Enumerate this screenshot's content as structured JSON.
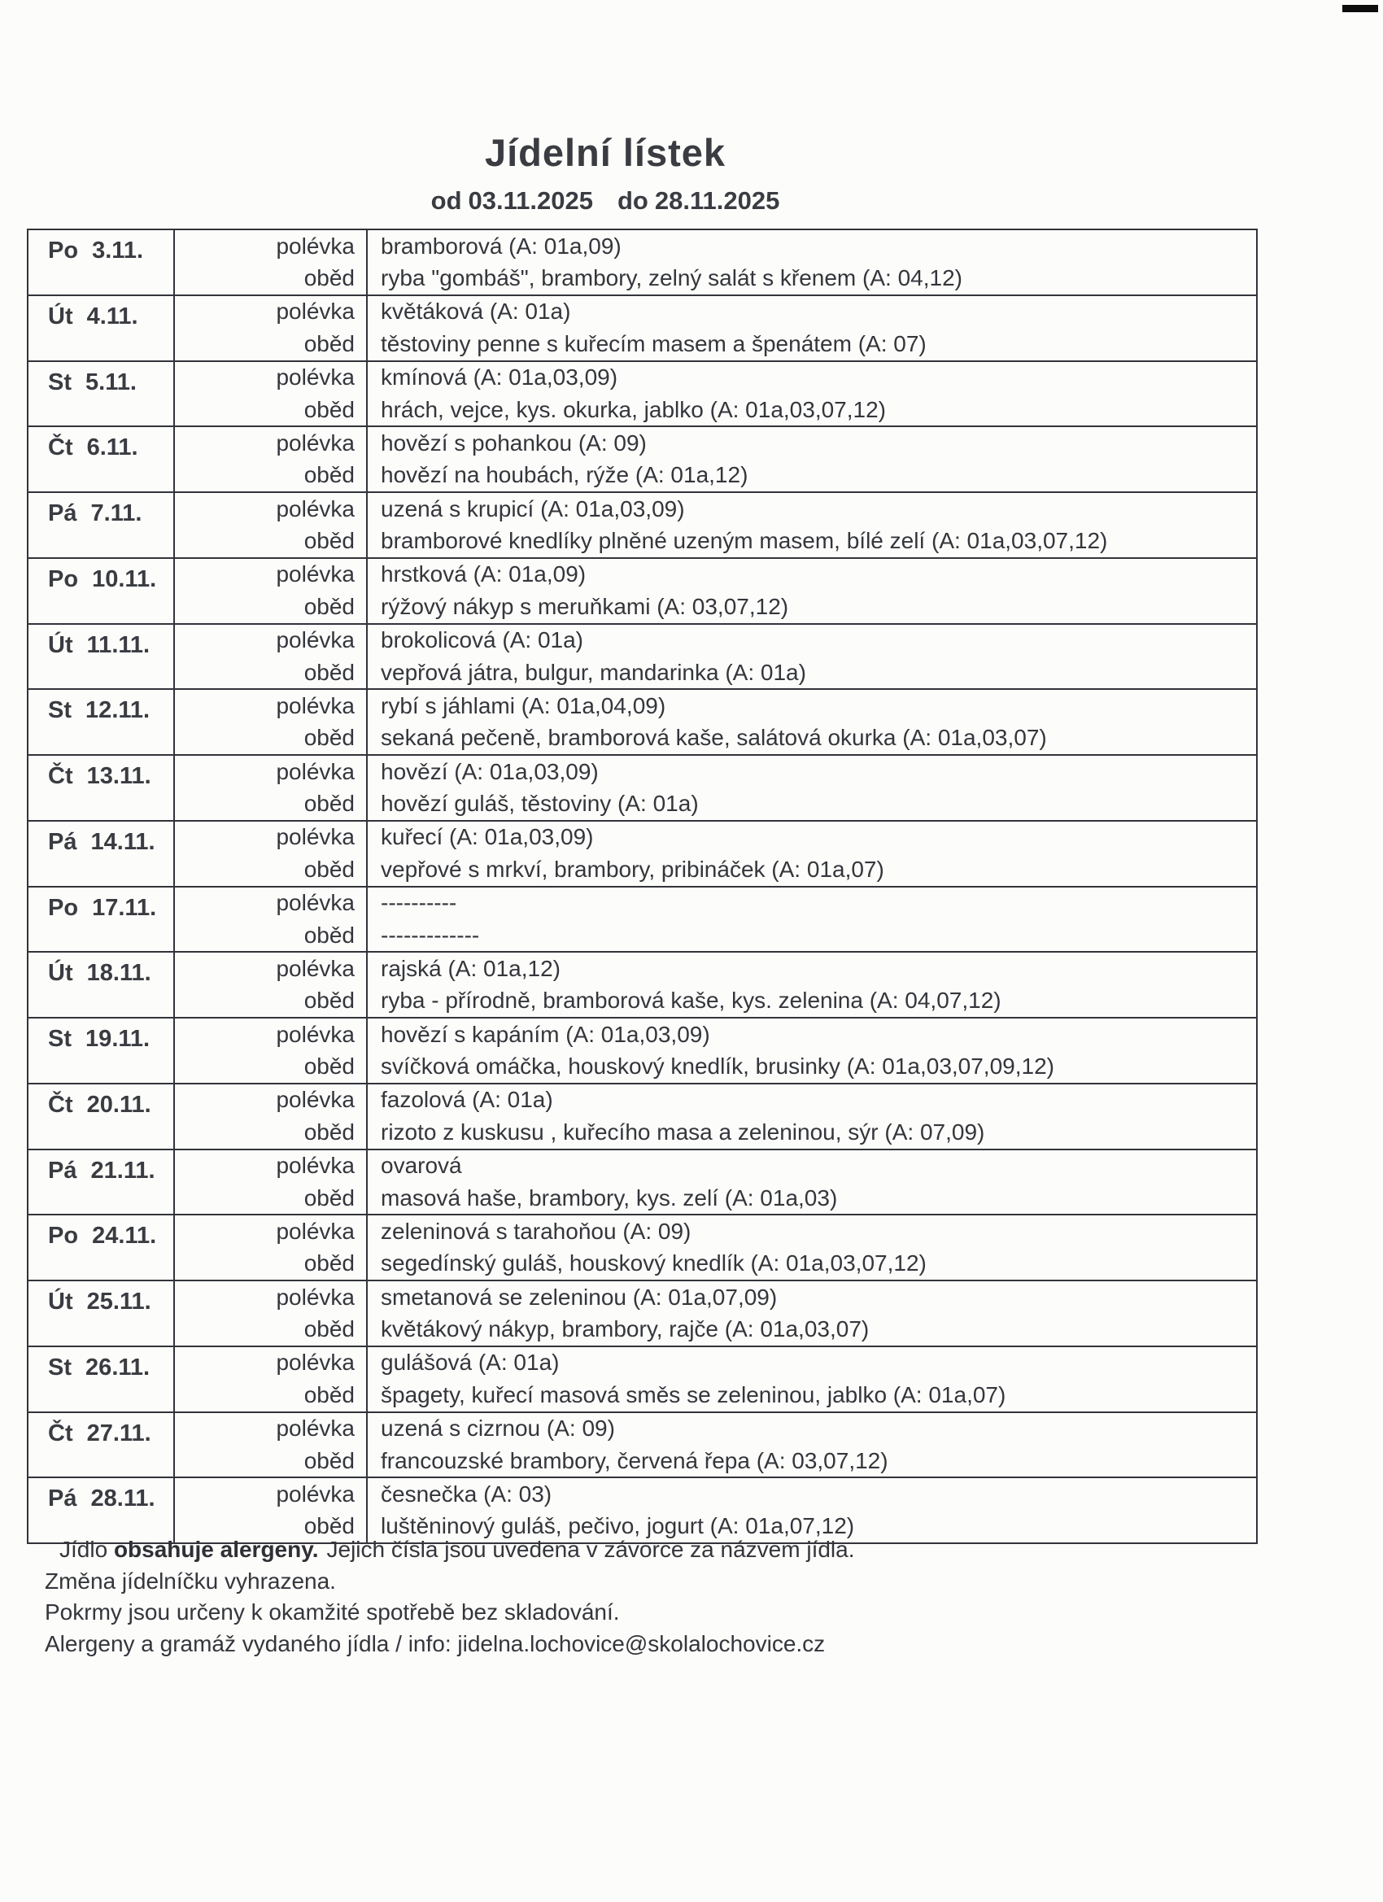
{
  "page": {
    "title": "Jídelní lístek",
    "date_range": {
      "from_label": "od",
      "from_date": "03.11.2025",
      "to_label": "do",
      "to_date": "28.11.2025"
    }
  },
  "menu": {
    "soup_label": "polévka",
    "lunch_label": "oběd",
    "days": [
      {
        "day": "Po 3.11.",
        "soup": "bramborová (A: 01a,09)",
        "lunch": "ryba \"gombáš\", brambory, zelný salát s křenem (A: 04,12)"
      },
      {
        "day": "Út 4.11.",
        "soup": "květáková (A: 01a)",
        "lunch": "těstoviny penne s kuřecím masem a špenátem (A: 07)"
      },
      {
        "day": "St 5.11.",
        "soup": "kmínová (A: 01a,03,09)",
        "lunch": "hrách, vejce, kys. okurka, jablko (A: 01a,03,07,12)"
      },
      {
        "day": "Čt 6.11.",
        "soup": "hovězí s pohankou (A: 09)",
        "lunch": "hovězí na houbách, rýže (A: 01a,12)"
      },
      {
        "day": "Pá 7.11.",
        "soup": "uzená s krupicí (A: 01a,03,09)",
        "lunch": "bramborové knedlíky plněné uzeným masem, bílé zelí (A: 01a,03,07,12)"
      },
      {
        "day": "Po 10.11.",
        "soup": "hrstková (A: 01a,09)",
        "lunch": "rýžový nákyp s meruňkami (A: 03,07,12)"
      },
      {
        "day": "Út 11.11.",
        "soup": "brokolicová (A: 01a)",
        "lunch": "vepřová játra, bulgur, mandarinka (A: 01a)"
      },
      {
        "day": "St 12.11.",
        "soup": "rybí s jáhlami (A: 01a,04,09)",
        "lunch": "sekaná pečeně, bramborová kaše, salátová okurka (A: 01a,03,07)"
      },
      {
        "day": "Čt 13.11.",
        "soup": "hovězí (A: 01a,03,09)",
        "lunch": "hovězí guláš, těstoviny (A: 01a)"
      },
      {
        "day": "Pá 14.11.",
        "soup": "kuřecí (A: 01a,03,09)",
        "lunch": "vepřové s mrkví, brambory, pribináček (A: 01a,07)"
      },
      {
        "day": "Po 17.11.",
        "soup": "----------",
        "lunch": "-------------"
      },
      {
        "day": "Út 18.11.",
        "soup": "rajská (A: 01a,12)",
        "lunch": "ryba - přírodně, bramborová kaše, kys. zelenina (A: 04,07,12)"
      },
      {
        "day": "St 19.11.",
        "soup": "hovězí s kapáním (A: 01a,03,09)",
        "lunch": "svíčková omáčka, houskový knedlík, brusinky (A: 01a,03,07,09,12)"
      },
      {
        "day": "Čt 20.11.",
        "soup": "fazolová (A: 01a)",
        "lunch": "rizoto z kuskusu , kuřecího masa a zeleninou, sýr (A: 07,09)"
      },
      {
        "day": "Pá 21.11.",
        "soup": "ovarová",
        "lunch": "masová haše, brambory, kys. zelí (A: 01a,03)"
      },
      {
        "day": "Po 24.11.",
        "soup": "zeleninová s tarahoňou (A: 09)",
        "lunch": "segedínský guláš, houskový knedlík (A: 01a,03,07,12)"
      },
      {
        "day": "Út 25.11.",
        "soup": "smetanová se zeleninou (A: 01a,07,09)",
        "lunch": "květákový nákyp, brambory, rajče (A: 01a,03,07)"
      },
      {
        "day": "St 26.11.",
        "soup": "gulášová (A: 01a)",
        "lunch": "špagety, kuřecí masová směs se zeleninou, jablko (A: 01a,07)"
      },
      {
        "day": "Čt 27.11.",
        "soup": "uzená s cizrnou (A: 09)",
        "lunch": "francouzské brambory, červená řepa (A: 03,07,12)"
      },
      {
        "day": "Pá 28.11.",
        "soup": "česnečka (A: 03)",
        "lunch": "luštěninový guláš, pečivo, jogurt (A: 01a,07,12)"
      }
    ]
  },
  "footer": {
    "line1_prefix": "Jídlo",
    "line1_bold": "obsahuje alergeny.",
    "line1_rest": "Jejich čísla jsou uvedena v závorce za názvem jídla.",
    "line2": "Změna jídelníčku vyhrazena.",
    "line3": "Pokrmy jsou určeny k okamžité spotřebě bez skladování.",
    "line4": "Alergeny a gramáž vydaného jídla / info: jidelna.lochovice@skolalochovice.cz"
  }
}
